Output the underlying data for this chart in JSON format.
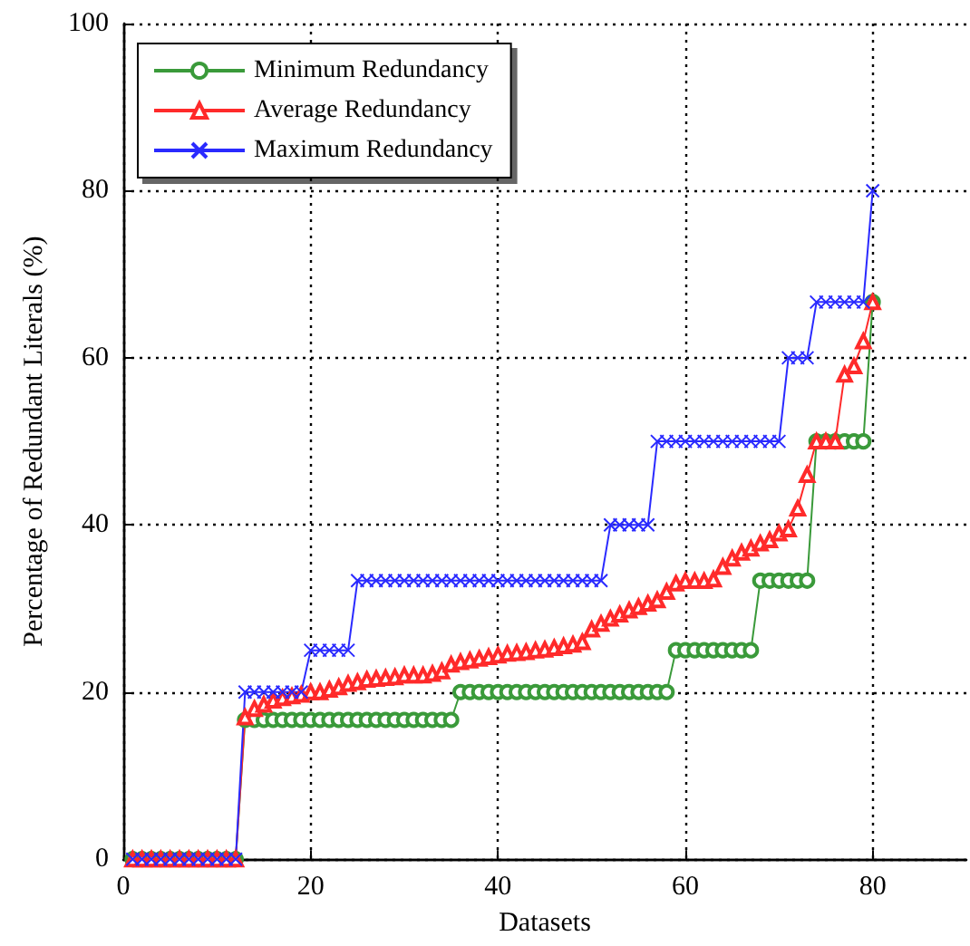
{
  "chart_data": {
    "type": "line",
    "xlabel": "Datasets",
    "ylabel": "Percentage of Redundant Literals (%)",
    "x": [
      1,
      2,
      3,
      4,
      5,
      6,
      7,
      8,
      9,
      10,
      11,
      12,
      13,
      14,
      15,
      16,
      17,
      18,
      19,
      20,
      21,
      22,
      23,
      24,
      25,
      26,
      27,
      28,
      29,
      30,
      31,
      32,
      33,
      34,
      35,
      36,
      37,
      38,
      39,
      40,
      41,
      42,
      43,
      44,
      45,
      46,
      47,
      48,
      49,
      50,
      51,
      52,
      53,
      54,
      55,
      56,
      57,
      58,
      59,
      60,
      61,
      62,
      63,
      64,
      65,
      66,
      67,
      68,
      69,
      70,
      71,
      72,
      73,
      74,
      75,
      76,
      77,
      78,
      79,
      80
    ],
    "series": [
      {
        "name": "Minimum Redundancy",
        "color": "#3a9a3a",
        "marker": "circle",
        "values": [
          0,
          0,
          0,
          0,
          0,
          0,
          0,
          0,
          0,
          0,
          0,
          0,
          16.67,
          16.67,
          16.67,
          16.67,
          16.67,
          16.67,
          16.67,
          16.67,
          16.67,
          16.67,
          16.67,
          16.67,
          16.67,
          16.67,
          16.67,
          16.67,
          16.67,
          16.67,
          16.67,
          16.67,
          16.67,
          16.67,
          16.67,
          20,
          20,
          20,
          20,
          20,
          20,
          20,
          20,
          20,
          20,
          20,
          20,
          20,
          20,
          20,
          20,
          20,
          20,
          20,
          20,
          20,
          20,
          20,
          25,
          25,
          25,
          25,
          25,
          25,
          25,
          25,
          25,
          33.33,
          33.33,
          33.33,
          33.33,
          33.33,
          33.33,
          50,
          50,
          50,
          50,
          50,
          50,
          66.67
        ]
      },
      {
        "name": "Average Redundancy",
        "color": "#ff2a2a",
        "marker": "triangle",
        "values": [
          0,
          0,
          0,
          0,
          0,
          0,
          0,
          0,
          0,
          0,
          0,
          0,
          17,
          18,
          18.5,
          19,
          19.3,
          19.5,
          19.7,
          20,
          20,
          20.3,
          20.6,
          21,
          21.2,
          21.5,
          21.6,
          21.7,
          21.8,
          22,
          22,
          22,
          22.2,
          22.5,
          23.3,
          23.6,
          23.8,
          24,
          24.2,
          24.4,
          24.6,
          24.7,
          24.8,
          25,
          25.1,
          25.3,
          25.5,
          25.7,
          26,
          27.5,
          28.2,
          28.8,
          29.3,
          29.8,
          30.2,
          30.6,
          31,
          32,
          33,
          33.3,
          33.3,
          33.3,
          33.5,
          35,
          36,
          36.7,
          37.2,
          37.8,
          38.2,
          39,
          39.5,
          42,
          46,
          50,
          50,
          50,
          58,
          59,
          62,
          66.67
        ]
      },
      {
        "name": "Maximum Redundancy",
        "color": "#2a2aff",
        "marker": "cross",
        "values": [
          0,
          0,
          0,
          0,
          0,
          0,
          0,
          0,
          0,
          0,
          0,
          0,
          20,
          20,
          20,
          20,
          20,
          20,
          20,
          25,
          25,
          25,
          25,
          25,
          33.33,
          33.33,
          33.33,
          33.33,
          33.33,
          33.33,
          33.33,
          33.33,
          33.33,
          33.33,
          33.33,
          33.33,
          33.33,
          33.33,
          33.33,
          33.33,
          33.33,
          33.33,
          33.33,
          33.33,
          33.33,
          33.33,
          33.33,
          33.33,
          33.33,
          33.33,
          33.33,
          40,
          40,
          40,
          40,
          40,
          50,
          50,
          50,
          50,
          50,
          50,
          50,
          50,
          50,
          50,
          50,
          50,
          50,
          50,
          60,
          60,
          60,
          66.67,
          66.67,
          66.67,
          66.67,
          66.67,
          66.67,
          80
        ]
      }
    ],
    "xlim": [
      0,
      90
    ],
    "xticks": [
      0,
      20,
      40,
      60,
      80
    ],
    "ylim": [
      0,
      100
    ],
    "yticks": [
      0,
      20,
      40,
      60,
      80,
      100
    ],
    "grid": true,
    "legend": "top left"
  }
}
